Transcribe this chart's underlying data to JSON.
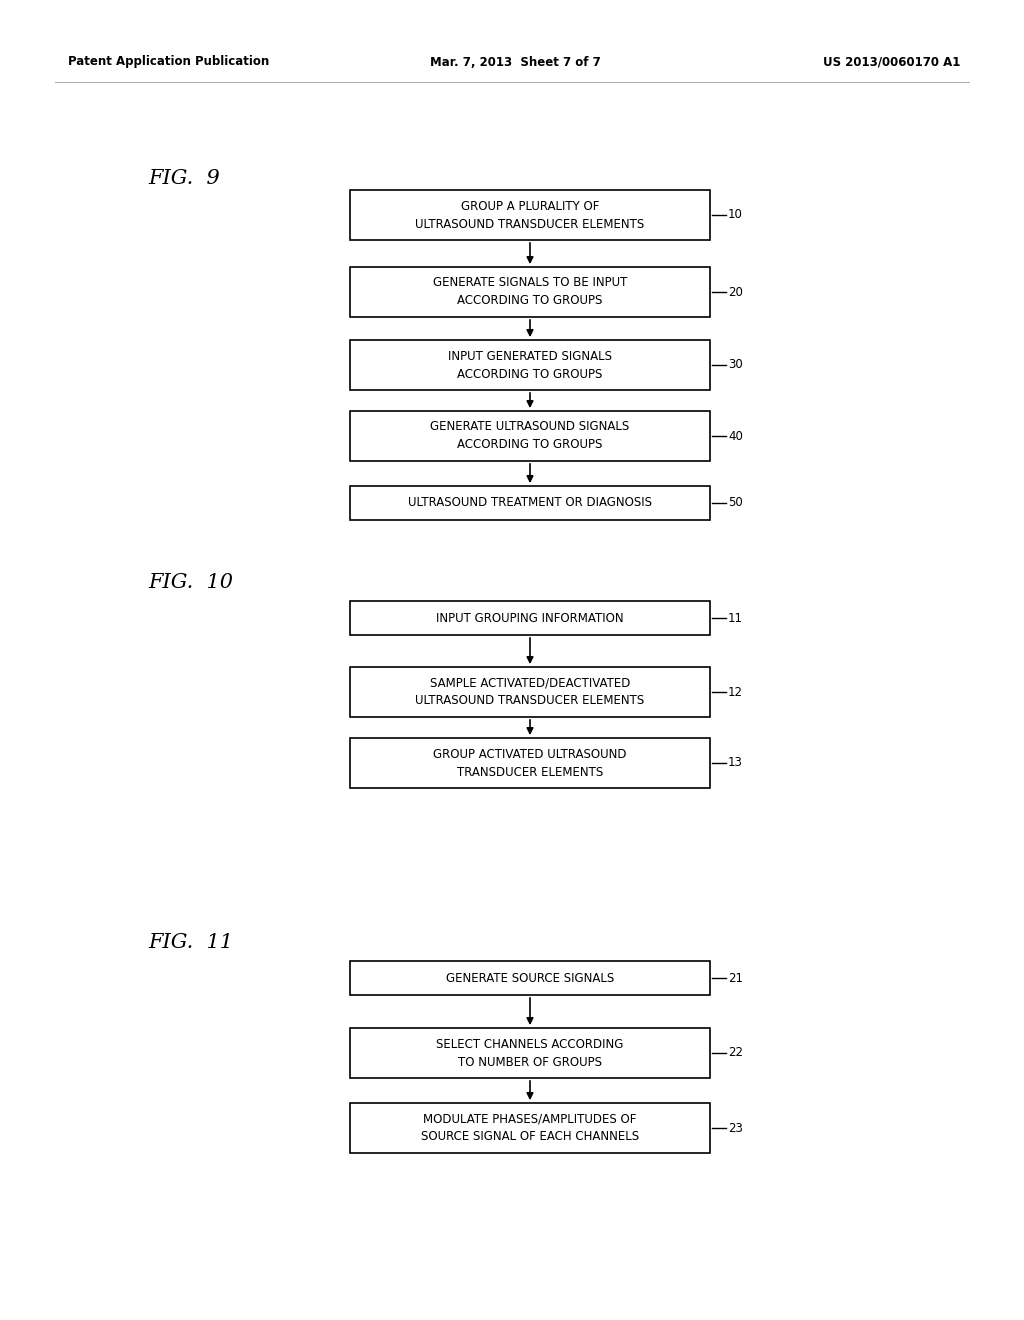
{
  "header_left": "Patent Application Publication",
  "header_mid": "Mar. 7, 2013  Sheet 7 of 7",
  "header_right": "US 2013/0060170 A1",
  "fig9_label": "FIG.  9",
  "fig10_label": "FIG.  10",
  "fig11_label": "FIG.  11",
  "fig9_boxes": [
    {
      "text": "GROUP A PLURALITY OF\nULTRASOUND TRANSDUCER ELEMENTS",
      "label": "10"
    },
    {
      "text": "GENERATE SIGNALS TO BE INPUT\nACCORDING TO GROUPS",
      "label": "20"
    },
    {
      "text": "INPUT GENERATED SIGNALS\nACCORDING TO GROUPS",
      "label": "30"
    },
    {
      "text": "GENERATE ULTRASOUND SIGNALS\nACCORDING TO GROUPS",
      "label": "40"
    },
    {
      "text": "ULTRASOUND TREATMENT OR DIAGNOSIS",
      "label": "50"
    }
  ],
  "fig10_boxes": [
    {
      "text": "INPUT GROUPING INFORMATION",
      "label": "11"
    },
    {
      "text": "SAMPLE ACTIVATED/DEACTIVATED\nULTRASOUND TRANSDUCER ELEMENTS",
      "label": "12"
    },
    {
      "text": "GROUP ACTIVATED ULTRASOUND\nTRANSDUCER ELEMENTS",
      "label": "13"
    }
  ],
  "fig11_boxes": [
    {
      "text": "GENERATE SOURCE SIGNALS",
      "label": "21"
    },
    {
      "text": "SELECT CHANNELS ACCORDING\nTO NUMBER OF GROUPS",
      "label": "22"
    },
    {
      "text": "MODULATE PHASES/AMPLITUDES OF\nSOURCE SIGNAL OF EACH CHANNELS",
      "label": "23"
    }
  ],
  "bg_color": "#ffffff",
  "box_edge_color": "#000000",
  "box_face_color": "#ffffff",
  "text_color": "#000000",
  "arrow_color": "#000000",
  "header_line_color": "#aaaaaa"
}
